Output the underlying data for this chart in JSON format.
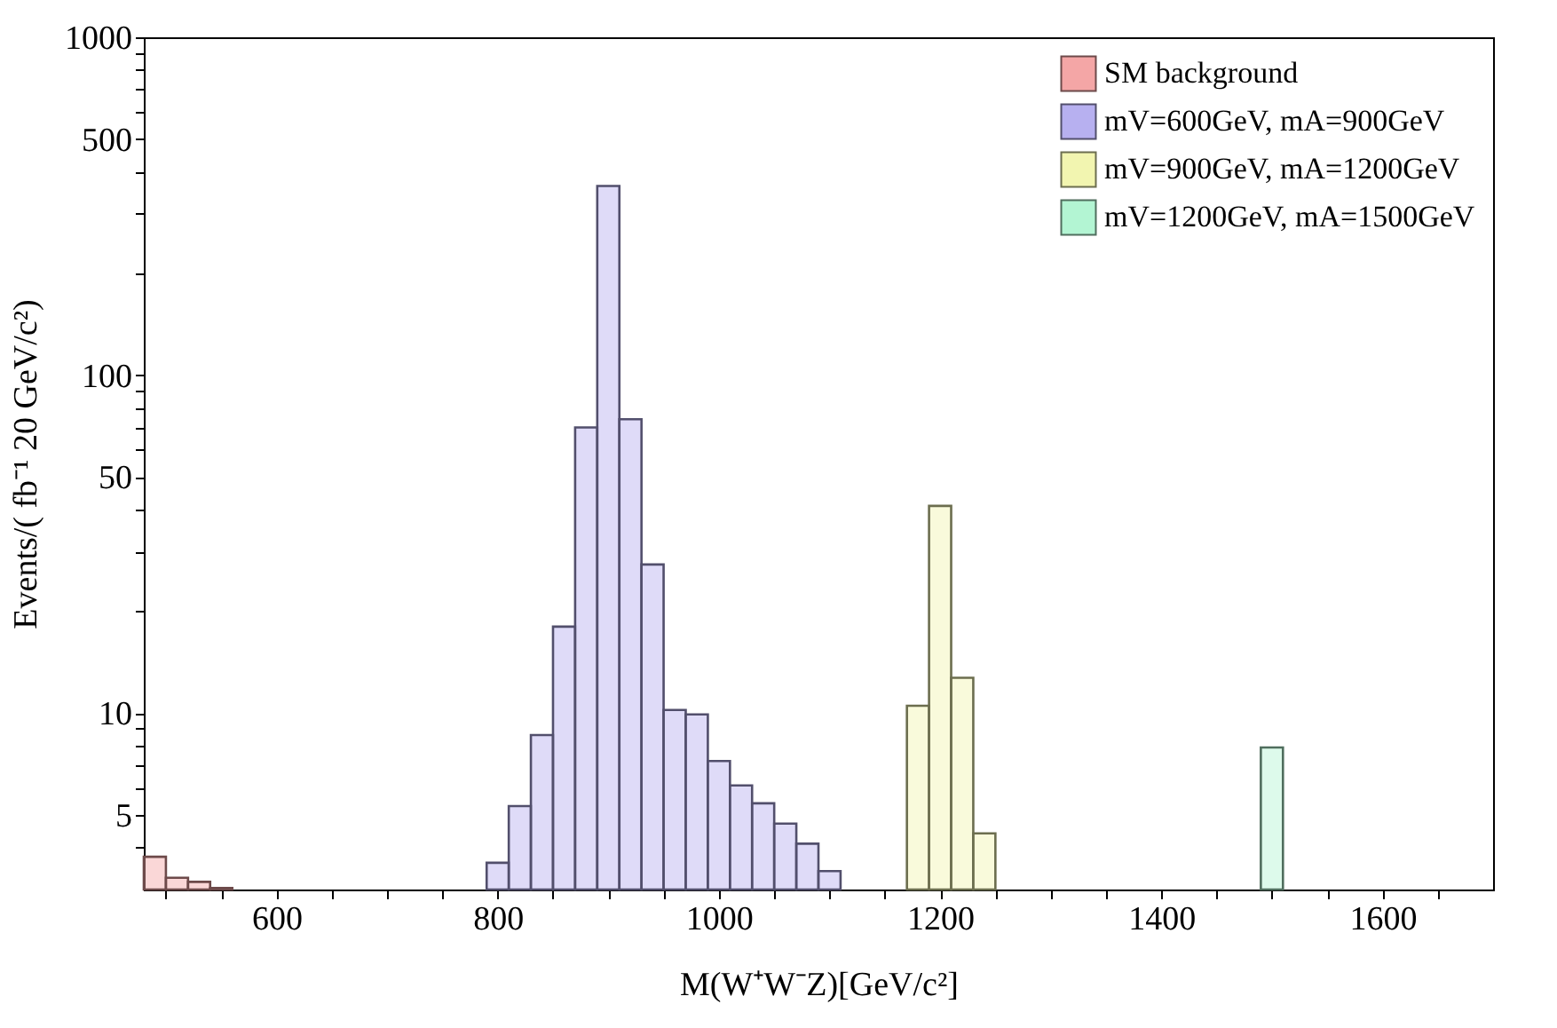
{
  "chart_data": {
    "type": "bar",
    "xlabel": "M(W⁺W⁻Z)[GeV/c²]",
    "ylabel": "Events/( fb⁻¹ 20 GeV/c²)",
    "log": "y",
    "xlim": [
      480,
      1700
    ],
    "ylim": [
      3,
      1000
    ],
    "xticks": [
      {
        "value": 500,
        "label": null
      },
      {
        "value": 550,
        "label": null
      },
      600,
      {
        "value": 650,
        "label": null
      },
      {
        "value": 700,
        "label": null
      },
      {
        "value": 750,
        "label": null
      },
      800,
      {
        "value": 850,
        "label": null
      },
      {
        "value": 900,
        "label": null
      },
      {
        "value": 950,
        "label": null
      },
      1000,
      {
        "value": 1050,
        "label": null
      },
      {
        "value": 1100,
        "label": null
      },
      {
        "value": 1150,
        "label": null
      },
      1200,
      {
        "value": 1250,
        "label": null
      },
      {
        "value": 1300,
        "label": null
      },
      {
        "value": 1350,
        "label": null
      },
      1400,
      {
        "value": 1450,
        "label": null
      },
      {
        "value": 1500,
        "label": null
      },
      {
        "value": 1550,
        "label": null
      },
      1600,
      {
        "value": 1650,
        "label": null
      }
    ],
    "yticks": [
      {
        "value": 4,
        "label": null
      },
      5,
      {
        "value": 6,
        "label": null
      },
      {
        "value": 7,
        "label": null
      },
      {
        "value": 8,
        "label": null
      },
      {
        "value": 9,
        "label": null
      },
      10,
      {
        "value": 20,
        "label": null
      },
      {
        "value": 30,
        "label": null
      },
      {
        "value": 40,
        "label": null
      },
      50,
      {
        "value": 60,
        "label": null
      },
      {
        "value": 70,
        "label": null
      },
      {
        "value": 80,
        "label": null
      },
      {
        "value": 90,
        "label": null
      },
      100,
      {
        "value": 200,
        "label": null
      },
      {
        "value": 300,
        "label": null
      },
      {
        "value": 400,
        "label": null
      },
      500,
      {
        "value": 600,
        "label": null
      },
      {
        "value": 700,
        "label": null
      },
      {
        "value": 800,
        "label": null
      },
      {
        "value": 900,
        "label": null
      },
      1000
    ],
    "legend": "top right",
    "series": [
      {
        "name": "SM background",
        "color": "#f4a6a6",
        "x": [
          490,
          510,
          530,
          550
        ],
        "values": [
          3.75,
          3.25,
          3.16,
          3.03
        ]
      },
      {
        "name": "mV=600GeV, mA=900GeV",
        "color": "#b7b0f0",
        "x": [
          800,
          820,
          840,
          860,
          880,
          900,
          920,
          940,
          960,
          980,
          1000,
          1020,
          1040,
          1060,
          1080,
          1100
        ],
        "values": [
          3.6,
          5.3,
          8.6,
          18,
          70,
          363,
          74,
          27.5,
          10.2,
          9.9,
          7.2,
          6.1,
          5.4,
          4.7,
          4.1,
          3.4
        ]
      },
      {
        "name": "mV=900GeV, mA=1200GeV",
        "color": "#f2f5b0",
        "x": [
          1180,
          1200,
          1220,
          1240
        ],
        "values": [
          10.5,
          41,
          12.7,
          4.4
        ]
      },
      {
        "name": "mV=1200GeV, mA=1500GeV",
        "color": "#b3f5d3",
        "x": [
          1500
        ],
        "values": [
          7.9
        ]
      }
    ]
  }
}
